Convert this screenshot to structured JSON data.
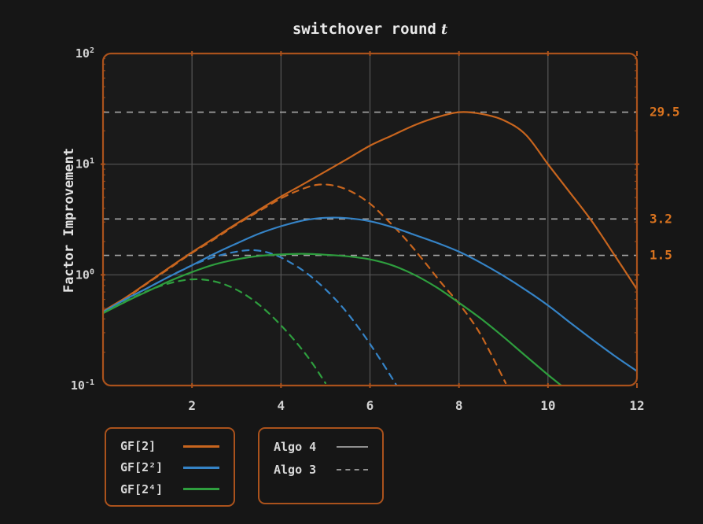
{
  "figure": {
    "title": "switchover round",
    "title_var": "t",
    "y_axis_label": "Factor Improvement",
    "colors": {
      "background": "#161616",
      "plot_background": "#1a1a1a",
      "axis_border": "#AA521C",
      "grid": "#565656",
      "level_dash": "#a6a6a6",
      "tick_label": "#d2d2d2",
      "annotation": "#D9731F",
      "algo_swatch": "#8f8f8f",
      "orange": "#C8651E",
      "blue": "#3583C6",
      "green": "#2E9E3E"
    }
  },
  "chart_data": {
    "type": "line",
    "title": "switchover round t",
    "xlabel": "switchover round t",
    "ylabel": "Factor Improvement",
    "x_range": [
      0,
      12
    ],
    "y_scale": "log10",
    "y_range": [
      0.1,
      100
    ],
    "grid": true,
    "x_ticks": [
      2,
      4,
      6,
      8,
      10,
      12
    ],
    "y_ticks": [
      {
        "base": "10",
        "exp": "2",
        "value": 100
      },
      {
        "base": "10",
        "exp": "1",
        "value": 10
      },
      {
        "base": "10",
        "exp": "0",
        "value": 1
      },
      {
        "base": "10",
        "exp": "-1",
        "value": 0.1
      }
    ],
    "annotations": [
      {
        "label": "29.5",
        "value": 29.5
      },
      {
        "label": "3.2",
        "value": 3.2
      },
      {
        "label": "1.5",
        "value": 1.5
      }
    ],
    "legend_fields": [
      {
        "label": "GF[2]",
        "color_key": "orange"
      },
      {
        "label": "GF[2²]",
        "color_key": "blue"
      },
      {
        "label": "GF[2⁴]",
        "color_key": "green"
      }
    ],
    "legend_algos": [
      {
        "label": "Algo 4",
        "style": "solid"
      },
      {
        "label": "Algo 3",
        "style": "dashed"
      }
    ],
    "series": [
      {
        "name": "GF[2] Algo 4",
        "field": "GF[2]",
        "algo": "Algo 4",
        "color_key": "orange",
        "style": "solid",
        "max": 29.5,
        "points": [
          [
            0,
            0.47
          ],
          [
            0.5,
            0.62
          ],
          [
            1,
            0.85
          ],
          [
            1.5,
            1.17
          ],
          [
            2,
            1.6
          ],
          [
            2.5,
            2.15
          ],
          [
            3,
            2.9
          ],
          [
            3.5,
            3.85
          ],
          [
            4,
            5.1
          ],
          [
            4.5,
            6.6
          ],
          [
            5,
            8.6
          ],
          [
            5.5,
            11.2
          ],
          [
            6,
            14.7
          ],
          [
            6.5,
            18.2
          ],
          [
            7,
            22.5
          ],
          [
            7.5,
            26.5
          ],
          [
            8,
            29.5
          ],
          [
            8.5,
            28.5
          ],
          [
            9,
            25
          ],
          [
            9.5,
            18.5
          ],
          [
            10,
            10
          ],
          [
            10.5,
            5.5
          ],
          [
            11,
            3.0
          ],
          [
            11.5,
            1.5
          ],
          [
            12,
            0.74
          ]
        ]
      },
      {
        "name": "GF[2] Algo 3",
        "field": "GF[2]",
        "algo": "Algo 3",
        "color_key": "orange",
        "style": "dashed",
        "points": [
          [
            0,
            0.46
          ],
          [
            0.5,
            0.61
          ],
          [
            1,
            0.84
          ],
          [
            1.5,
            1.15
          ],
          [
            2,
            1.58
          ],
          [
            2.5,
            2.1
          ],
          [
            3,
            2.85
          ],
          [
            3.5,
            3.75
          ],
          [
            4,
            4.9
          ],
          [
            4.4,
            5.8
          ],
          [
            4.8,
            6.5
          ],
          [
            5.2,
            6.4
          ],
          [
            5.6,
            5.6
          ],
          [
            6,
            4.4
          ],
          [
            6.4,
            3.1
          ],
          [
            6.8,
            2.1
          ],
          [
            7.2,
            1.35
          ],
          [
            7.6,
            0.85
          ],
          [
            8,
            0.55
          ],
          [
            8.4,
            0.33
          ],
          [
            8.7,
            0.2
          ],
          [
            9.05,
            0.105
          ]
        ]
      },
      {
        "name": "GF[2²] Algo 4",
        "field": "GF[2²]",
        "algo": "Algo 4",
        "color_key": "blue",
        "style": "solid",
        "max": 3.2,
        "points": [
          [
            0,
            0.46
          ],
          [
            0.5,
            0.6
          ],
          [
            1,
            0.76
          ],
          [
            1.5,
            0.97
          ],
          [
            2,
            1.22
          ],
          [
            2.5,
            1.55
          ],
          [
            3,
            1.92
          ],
          [
            3.5,
            2.35
          ],
          [
            4,
            2.75
          ],
          [
            4.5,
            3.1
          ],
          [
            5,
            3.28
          ],
          [
            5.5,
            3.25
          ],
          [
            6,
            3.05
          ],
          [
            6.5,
            2.7
          ],
          [
            7,
            2.3
          ],
          [
            7.5,
            1.95
          ],
          [
            8,
            1.62
          ],
          [
            8.5,
            1.28
          ],
          [
            9,
            0.98
          ],
          [
            9.5,
            0.73
          ],
          [
            10,
            0.53
          ],
          [
            10.5,
            0.37
          ],
          [
            11,
            0.26
          ],
          [
            11.5,
            0.185
          ],
          [
            12,
            0.135
          ]
        ]
      },
      {
        "name": "GF[2²] Algo 3",
        "field": "GF[2²]",
        "algo": "Algo 3",
        "color_key": "blue",
        "style": "dashed",
        "points": [
          [
            0,
            0.46
          ],
          [
            0.5,
            0.6
          ],
          [
            1,
            0.76
          ],
          [
            1.5,
            0.97
          ],
          [
            2,
            1.22
          ],
          [
            2.5,
            1.45
          ],
          [
            3,
            1.62
          ],
          [
            3.4,
            1.67
          ],
          [
            3.8,
            1.55
          ],
          [
            4.2,
            1.3
          ],
          [
            4.6,
            1.02
          ],
          [
            5,
            0.74
          ],
          [
            5.4,
            0.5
          ],
          [
            5.8,
            0.31
          ],
          [
            6.2,
            0.18
          ],
          [
            6.6,
            0.1
          ]
        ]
      },
      {
        "name": "GF[2⁴] Algo 4",
        "field": "GF[2⁴]",
        "algo": "Algo 4",
        "color_key": "green",
        "style": "solid",
        "max": 1.5,
        "points": [
          [
            0,
            0.45
          ],
          [
            0.5,
            0.57
          ],
          [
            1,
            0.71
          ],
          [
            1.5,
            0.88
          ],
          [
            2,
            1.06
          ],
          [
            2.5,
            1.24
          ],
          [
            3,
            1.38
          ],
          [
            3.5,
            1.48
          ],
          [
            4,
            1.53
          ],
          [
            4.5,
            1.55
          ],
          [
            5,
            1.52
          ],
          [
            5.5,
            1.47
          ],
          [
            6,
            1.38
          ],
          [
            6.5,
            1.22
          ],
          [
            7,
            1.0
          ],
          [
            7.5,
            0.77
          ],
          [
            8,
            0.56
          ],
          [
            8.5,
            0.4
          ],
          [
            9,
            0.275
          ],
          [
            9.5,
            0.185
          ],
          [
            10,
            0.125
          ],
          [
            10.3,
            0.1
          ]
        ]
      },
      {
        "name": "GF[2⁴] Algo 3",
        "field": "GF[2⁴]",
        "algo": "Algo 3",
        "color_key": "green",
        "style": "dashed",
        "points": [
          [
            0,
            0.45
          ],
          [
            0.4,
            0.55
          ],
          [
            0.8,
            0.66
          ],
          [
            1.2,
            0.77
          ],
          [
            1.6,
            0.86
          ],
          [
            2,
            0.91
          ],
          [
            2.4,
            0.89
          ],
          [
            2.8,
            0.8
          ],
          [
            3.2,
            0.66
          ],
          [
            3.6,
            0.5
          ],
          [
            4,
            0.35
          ],
          [
            4.4,
            0.23
          ],
          [
            4.7,
            0.16
          ],
          [
            5,
            0.105
          ]
        ]
      }
    ]
  }
}
